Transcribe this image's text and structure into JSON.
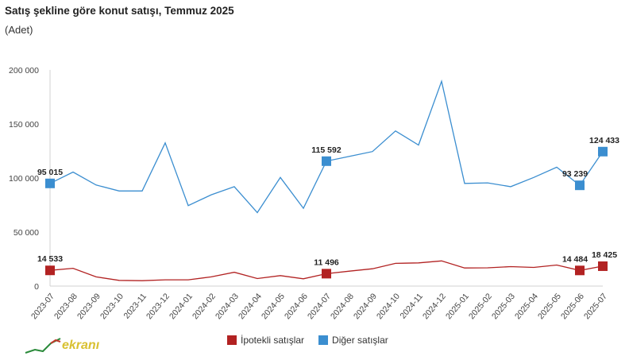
{
  "header": {
    "title": "Satış şekline göre konut satışı, Temmuz 2025",
    "subtitle": "(Adet)"
  },
  "logo": {
    "text": "ekranı"
  },
  "colors": {
    "ipotekli": "#b22222",
    "diger": "#3b8ed0"
  },
  "chart_data": {
    "type": "line",
    "categories": [
      "2023-07",
      "2023-08",
      "2023-09",
      "2023-10",
      "2023-11",
      "2023-12",
      "2024-01",
      "2024-02",
      "2024-03",
      "2024-04",
      "2024-05",
      "2024-06",
      "2024-07",
      "2024-08",
      "2024-09",
      "2024-10",
      "2024-11",
      "2024-12",
      "2025-01",
      "2025-02",
      "2025-03",
      "2025-04",
      "2025-05",
      "2025-06",
      "2025-07"
    ],
    "series": [
      {
        "name": "İpotekli satışlar",
        "color": "#b22222",
        "values": [
          14533,
          16500,
          8500,
          5300,
          5000,
          5800,
          5800,
          8500,
          12800,
          7000,
          9700,
          6800,
          11496,
          13800,
          16000,
          21000,
          21500,
          23300,
          16800,
          16900,
          18000,
          17300,
          19500,
          14484,
          18425
        ]
      },
      {
        "name": "Diğer satışlar",
        "color": "#3b8ed0",
        "values": [
          95015,
          105500,
          93500,
          88000,
          88000,
          132500,
          74500,
          84500,
          92000,
          68000,
          100500,
          72000,
          115592,
          120000,
          124500,
          143500,
          130500,
          189500,
          95000,
          95500,
          92000,
          100500,
          110000,
          93239,
          124433
        ]
      }
    ],
    "highlighted_indices": [
      0,
      12,
      23,
      24
    ],
    "point_labels": {
      "ipotekli": [
        "14 533",
        "11 496",
        "14 484",
        "18 425"
      ],
      "diger": [
        "95 015",
        "115 592",
        "93 239",
        "124 433"
      ]
    },
    "y_ticks": [
      0,
      50000,
      100000,
      150000,
      200000
    ],
    "y_tick_labels": [
      "0",
      "50 000",
      "100 000",
      "150 000",
      "200 000"
    ],
    "ylim": [
      0,
      200000
    ],
    "grid": false,
    "legend_position": "bottom"
  }
}
